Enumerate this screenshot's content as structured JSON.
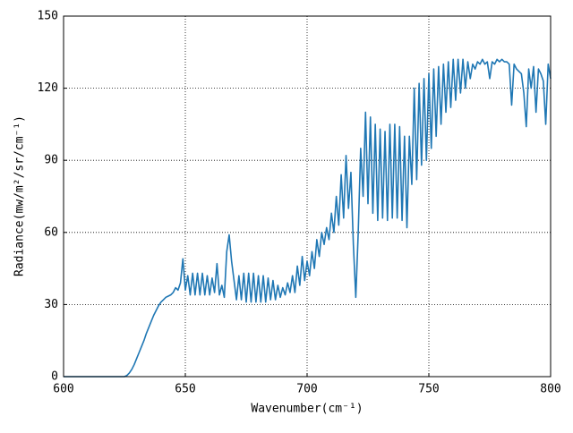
{
  "chart_data": {
    "type": "line",
    "xlabel": "Wavenumber(cm⁻¹)",
    "ylabel": "Radiance(mw/m²/sr/cm⁻¹)",
    "xlim": [
      600,
      800
    ],
    "xticks": [
      600,
      650,
      700,
      750,
      800
    ],
    "ylim": [
      0,
      150
    ],
    "yticks": [
      0,
      30,
      60,
      90,
      120,
      150
    ],
    "grid": true,
    "x": [
      600,
      601,
      602,
      603,
      604,
      605,
      606,
      607,
      608,
      609,
      610,
      611,
      612,
      613,
      614,
      615,
      616,
      617,
      618,
      619,
      620,
      621,
      622,
      623,
      624,
      625,
      626,
      627,
      628,
      629,
      630,
      631,
      632,
      633,
      634,
      635,
      636,
      637,
      638,
      639,
      640,
      641,
      642,
      643,
      644,
      645,
      646,
      647,
      648,
      649,
      650,
      651,
      652,
      653,
      654,
      655,
      656,
      657,
      658,
      659,
      660,
      661,
      662,
      663,
      664,
      665,
      666,
      667,
      668,
      669,
      670,
      671,
      672,
      673,
      674,
      675,
      676,
      677,
      678,
      679,
      680,
      681,
      682,
      683,
      684,
      685,
      686,
      687,
      688,
      689,
      690,
      691,
      692,
      693,
      694,
      695,
      696,
      697,
      698,
      699,
      700,
      701,
      702,
      703,
      704,
      705,
      706,
      707,
      708,
      709,
      710,
      711,
      712,
      713,
      714,
      715,
      716,
      717,
      718,
      719,
      720,
      721,
      722,
      723,
      724,
      725,
      726,
      727,
      728,
      729,
      730,
      731,
      732,
      733,
      734,
      735,
      736,
      737,
      738,
      739,
      740,
      741,
      742,
      743,
      744,
      745,
      746,
      747,
      748,
      749,
      750,
      751,
      752,
      753,
      754,
      755,
      756,
      757,
      758,
      759,
      760,
      761,
      762,
      763,
      764,
      765,
      766,
      767,
      768,
      769,
      770,
      771,
      772,
      773,
      774,
      775,
      776,
      777,
      778,
      779,
      780,
      781,
      782,
      783,
      784,
      785,
      786,
      787,
      788,
      789,
      790,
      791,
      792,
      793,
      794,
      795,
      796,
      797,
      798,
      799,
      800
    ],
    "series": [
      {
        "color": "#1f77b4",
        "values": [
          0,
          0,
          0,
          0,
          0,
          0,
          0,
          0,
          0,
          0,
          0,
          0,
          0,
          0,
          0,
          0,
          0,
          0,
          0,
          0,
          0,
          0,
          0,
          0,
          0,
          0,
          0.5,
          1.5,
          3,
          5,
          7.5,
          10,
          12.5,
          15,
          18,
          20.5,
          23,
          25.5,
          27.5,
          29.5,
          31,
          32,
          33,
          33.5,
          34,
          35,
          37,
          36,
          39,
          49,
          36,
          42,
          34,
          43,
          34,
          43,
          34,
          43,
          34,
          42,
          34,
          41,
          35,
          47,
          34,
          38,
          33,
          52,
          59,
          48,
          40,
          32,
          42,
          32,
          43,
          31,
          43,
          31,
          43,
          31,
          42,
          31,
          42,
          31,
          41,
          32,
          40,
          32,
          38,
          33,
          37,
          34,
          39,
          35,
          42,
          35,
          46,
          38,
          50,
          40,
          48,
          42,
          52,
          45,
          57,
          50,
          60,
          55,
          62,
          57,
          68,
          60,
          75,
          63,
          84,
          66,
          92,
          70,
          85,
          55,
          33,
          60,
          95,
          75,
          110,
          72,
          108,
          68,
          105,
          65,
          103,
          66,
          102,
          65,
          105,
          66,
          105,
          66,
          104,
          65,
          100,
          62,
          100,
          80,
          120,
          82,
          122,
          88,
          124,
          90,
          126,
          95,
          128,
          100,
          129,
          105,
          130,
          110,
          131,
          112,
          132,
          115,
          132,
          118,
          132,
          120,
          131,
          124,
          130,
          128,
          131,
          130,
          132,
          130,
          131,
          124,
          131,
          130,
          132,
          131,
          132,
          131,
          131,
          130,
          113,
          130,
          128,
          127,
          126,
          118,
          104,
          128,
          120,
          129,
          110,
          128,
          126,
          123,
          105,
          130,
          124
        ]
      }
    ]
  }
}
